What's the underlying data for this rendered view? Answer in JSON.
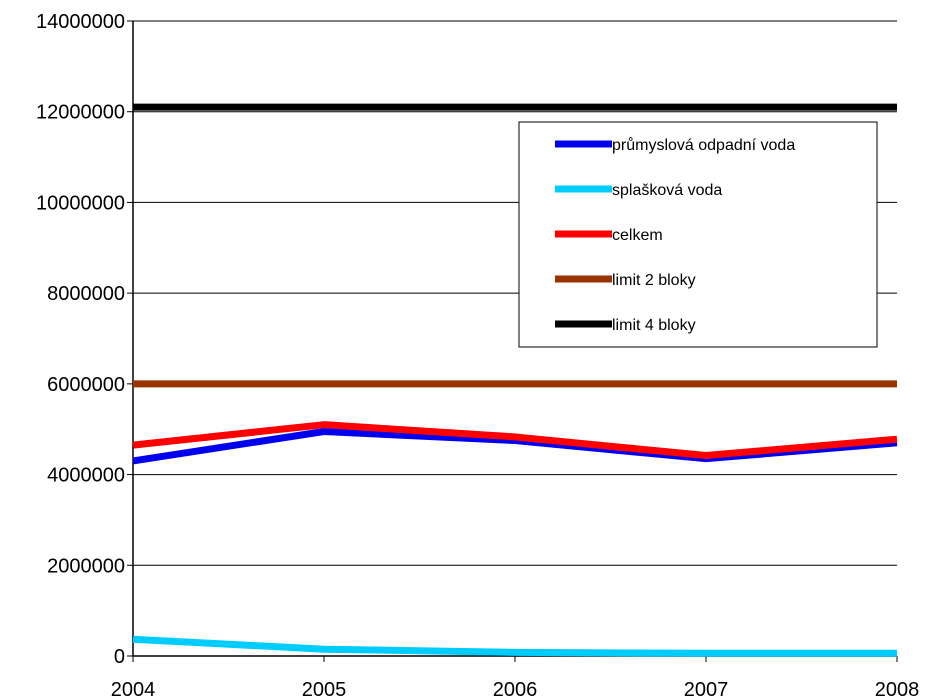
{
  "chart_data": {
    "type": "line",
    "title": "",
    "xlabel": "",
    "ylabel": "",
    "x": [
      2004,
      2005,
      2006,
      2007,
      2008
    ],
    "x_tick_labels": [
      "2004",
      "2005",
      "2006",
      "2007",
      "2008"
    ],
    "ylim": [
      0,
      14000000
    ],
    "y_ticks": [
      0,
      2000000,
      4000000,
      6000000,
      8000000,
      10000000,
      12000000,
      14000000
    ],
    "y_tick_labels": [
      "0",
      "2000000",
      "4000000",
      "6000000",
      "8000000",
      "10000000",
      "12000000",
      "14000000"
    ],
    "grid": "horizontal",
    "legend_position": "top-right",
    "series": [
      {
        "name": "průmyslová odpadní voda",
        "color": "#0000ee",
        "values": [
          4300000,
          4950000,
          4750000,
          4350000,
          4700000
        ]
      },
      {
        "name": "splašková voda",
        "color": "#00ccff",
        "values": [
          370000,
          150000,
          80000,
          60000,
          60000
        ]
      },
      {
        "name": "celkem",
        "color": "#ff0000",
        "values": [
          4650000,
          5100000,
          4830000,
          4420000,
          4780000
        ]
      },
      {
        "name": "limit 2 bloky",
        "color": "#993300",
        "values": [
          6000000,
          6000000,
          6000000,
          6000000,
          6000000
        ]
      },
      {
        "name": "limit 4 bloky",
        "color": "#000000",
        "values": [
          12100000,
          12100000,
          12100000,
          12100000,
          12100000
        ]
      }
    ]
  }
}
